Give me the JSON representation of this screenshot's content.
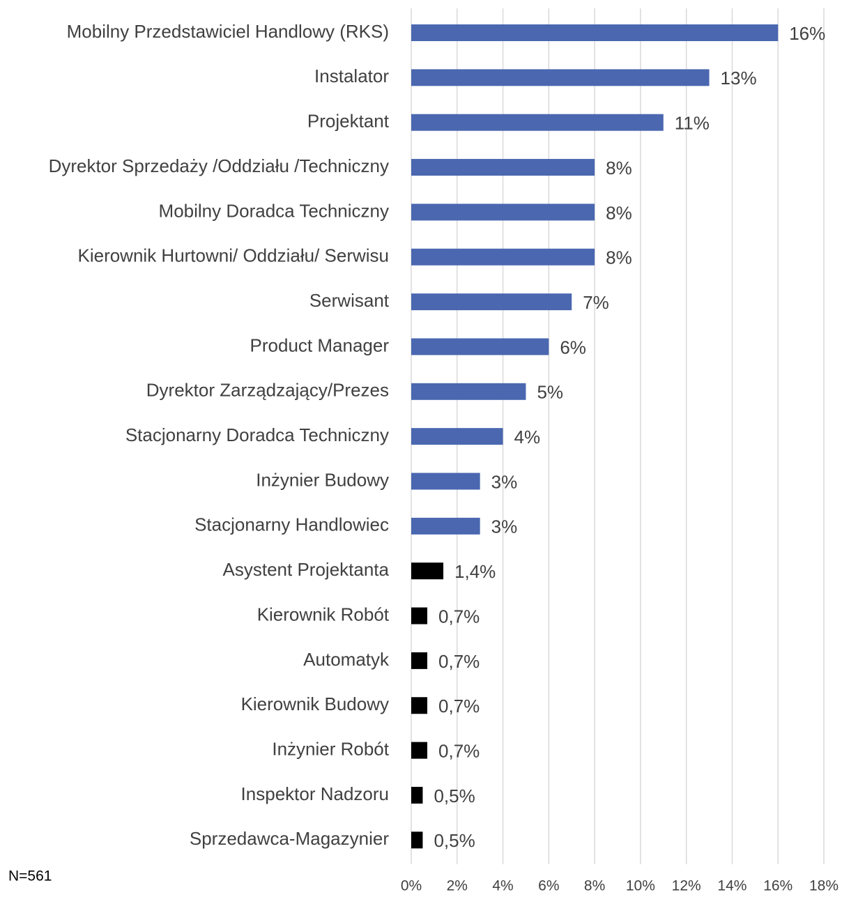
{
  "chart_data": {
    "type": "barh",
    "categories": [
      "Mobilny Przedstawiciel Handlowy (RKS)",
      "Instalator",
      "Projektant",
      "Dyrektor Sprzedaży /Oddziału /Techniczny",
      "Mobilny Doradca Techniczny",
      "Kierownik Hurtowni/ Oddziału/ Serwisu",
      "Serwisant",
      "Product Manager",
      "Dyrektor Zarządzający/Prezes",
      "Stacjonarny Doradca Techniczny",
      "Inżynier Budowy",
      "Stacjonarny Handlowiec",
      "Asystent Projektanta",
      "Kierownik Robót",
      "Automatyk",
      "Kierownik Budowy",
      "Inżynier Robót",
      "Inspektor Nadzoru",
      "Sprzedawca-Magazynier"
    ],
    "values": [
      16,
      13,
      11,
      8,
      8,
      8,
      7,
      6,
      5,
      4,
      3,
      3,
      1.4,
      0.7,
      0.7,
      0.7,
      0.7,
      0.5,
      0.5
    ],
    "value_labels": [
      "16%",
      "13%",
      "11%",
      "8%",
      "8%",
      "8%",
      "7%",
      "6%",
      "5%",
      "4%",
      "3%",
      "3%",
      "1,4%",
      "0,7%",
      "0,7%",
      "0,7%",
      "0,7%",
      "0,5%",
      "0,5%"
    ],
    "colors": [
      "#4a67b0",
      "#4a67b0",
      "#4a67b0",
      "#4a67b0",
      "#4a67b0",
      "#4a67b0",
      "#4a67b0",
      "#4a67b0",
      "#4a67b0",
      "#4a67b0",
      "#4a67b0",
      "#4a67b0",
      "#000000",
      "#000000",
      "#000000",
      "#000000",
      "#000000",
      "#000000",
      "#000000"
    ],
    "xlim": [
      0,
      18
    ],
    "xticks": [
      {
        "value": 0,
        "label": "0%"
      },
      {
        "value": 2,
        "label": "2%"
      },
      {
        "value": 4,
        "label": "4%"
      },
      {
        "value": 6,
        "label": "6%"
      },
      {
        "value": 8,
        "label": "8%"
      },
      {
        "value": 10,
        "label": "10%"
      },
      {
        "value": 12,
        "label": "12%"
      },
      {
        "value": 14,
        "label": "14%"
      },
      {
        "value": 16,
        "label": "16%"
      },
      {
        "value": 18,
        "label": "18%"
      }
    ],
    "grid": true,
    "annotation": "N=561"
  }
}
